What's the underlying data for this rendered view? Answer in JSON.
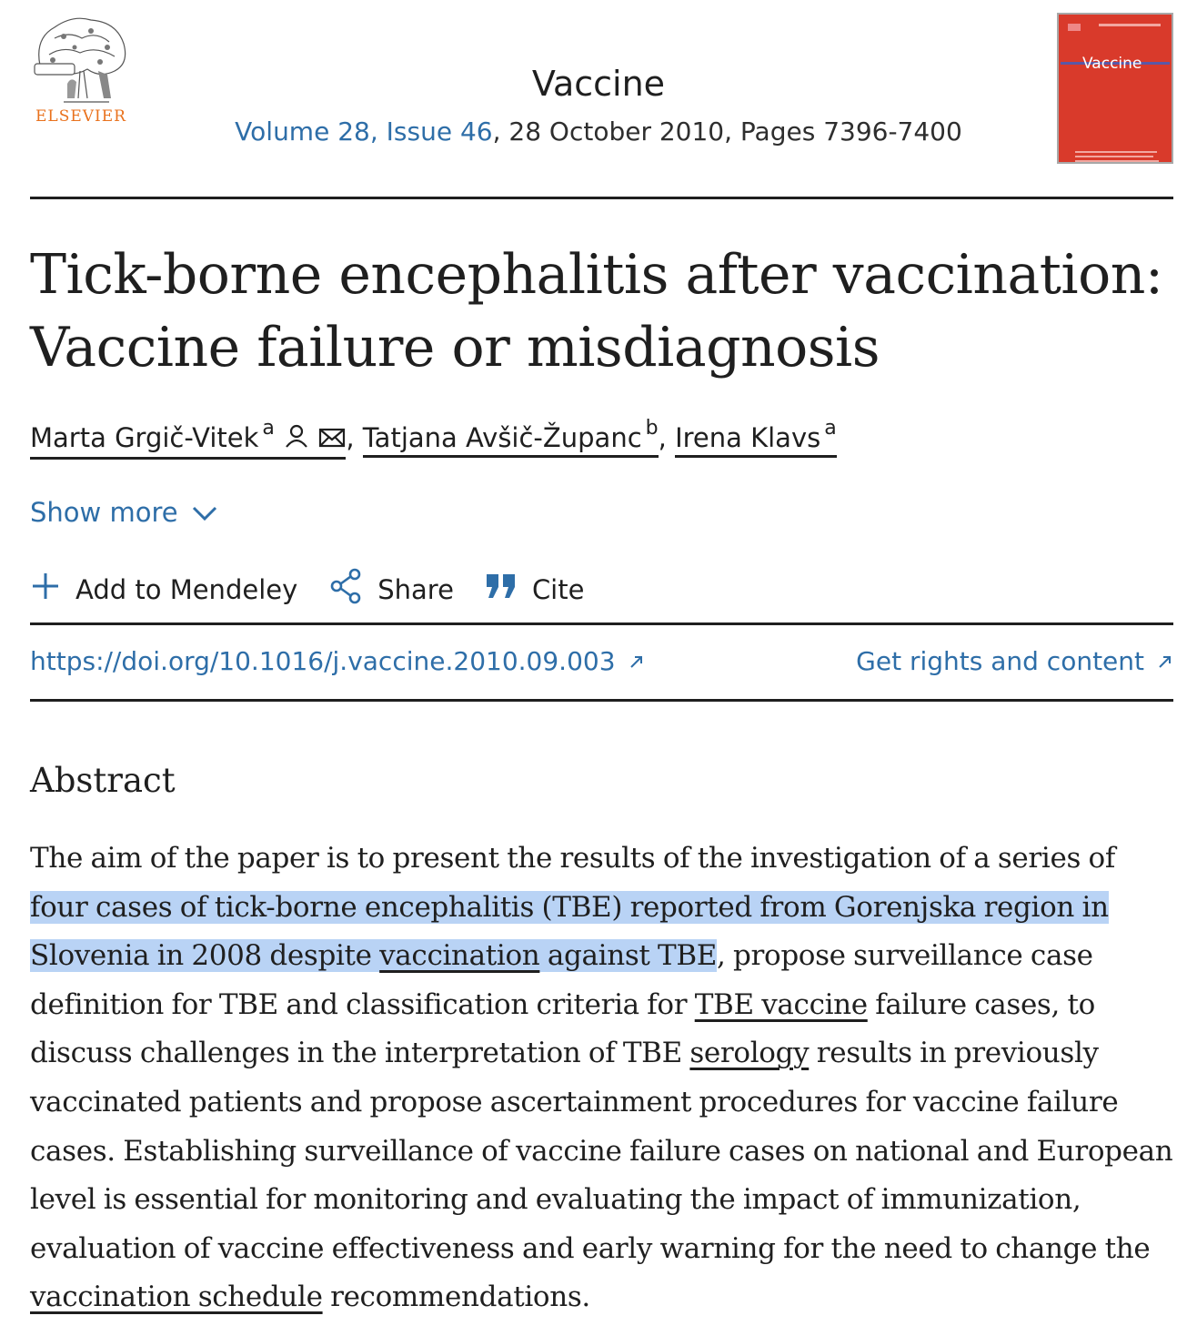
{
  "header": {
    "publisher": "ELSEVIER",
    "journal": "Vaccine",
    "volume_issue": "Volume 28, Issue 46",
    "date_pages": ", 28 October 2010, Pages 7396-7400",
    "cover_title": "Vaccine"
  },
  "article": {
    "title": "Tick-borne encephalitis after vaccination: Vaccine failure or misdiagnosis",
    "authors": [
      {
        "name": "Marta Grgič-Vitek",
        "affiliation": "a"
      },
      {
        "name": "Tatjana Avšič-Županc",
        "affiliation": "b"
      },
      {
        "name": "Irena Klavs",
        "affiliation": "a"
      }
    ],
    "separator": ","
  },
  "actions": {
    "show_more": "Show more",
    "add_to_mendeley": "Add to Mendeley",
    "share": "Share",
    "cite": "Cite"
  },
  "links": {
    "doi": "https://doi.org/10.1016/j.vaccine.2010.09.003",
    "rights": "Get rights and content"
  },
  "abstract": {
    "heading": "Abstract",
    "p1": "The aim of the paper is to present the results of the investigation of a series of ",
    "p2_highlight": "four cases of tick-borne encephalitis (TBE) reported from Gorenjska region in Slovenia in 2008 despite ",
    "p3_highlight_link": "vaccination",
    "p4_highlight": " against TBE",
    "p5": ", propose surveillance case definition for TBE and classification criteria for ",
    "p6_link": "TBE vaccine",
    "p7": " failure cases, to discuss challenges in the interpretation of TBE ",
    "p8_link": "serology",
    "p9": " results in previously vaccinated patients and propose ascertainment procedures for vaccine failure cases. Establishing surveillance of vaccine failure cases on national and European level is essential for monitoring and evaluating the impact of immunization, evaluation of vaccine effectiveness and early warning for the need to change the ",
    "p10_link": "vaccination schedule",
    "p11": " recommendations."
  },
  "colors": {
    "link": "#2e6ea8",
    "highlight": "#b9d3f5",
    "elsevier_orange": "#e9711c",
    "cover_red": "#d93a2b"
  }
}
